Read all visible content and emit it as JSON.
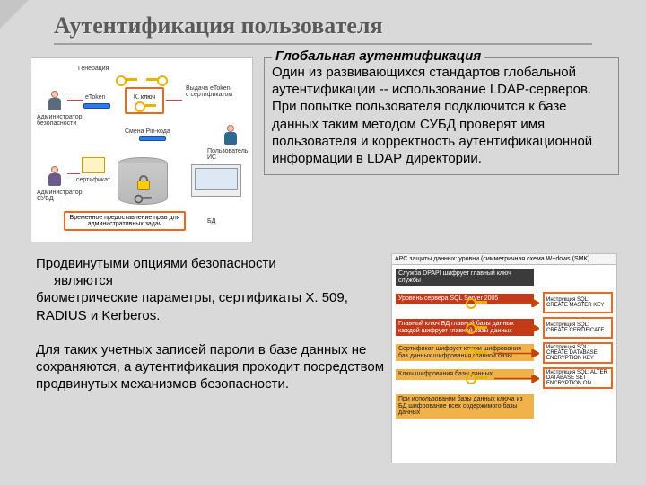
{
  "title": "Аутентификация пользователя",
  "right_panel": {
    "legend": "Глобальная аутентификация",
    "body": "Один из развивающихся стандартов глобальной аутентификации -- использование LDAP-серверов. При попытке пользователя подключится к базе данных таким методом СУБД проверят имя пользователя и корректность аутентификационной информации в LDAP директории."
  },
  "para2_line1": "Продвинутыми опциями безопасности",
  "para2_line2": "являются",
  "para2_rest": "биометрические параметры, сертификаты X. 509, RADIUS и Kerberos.",
  "para3": "Для таких учетных записей пароли в базе данных не сохраняются, а аутентификация проходит посредством продвинутых механизмов безопасности.",
  "diagram1": {
    "labels": {
      "admin_sec": "Администратор безопасности",
      "etoken": "eToken",
      "generation": "Генерация",
      "pin": "Смена Pin-кода",
      "keys": "К. ключ",
      "cert_issue": "Выдача eToken\nс сертификатом",
      "user": "Пользователь ИС",
      "admin": "Администратор СУБД",
      "cert": "сертификат",
      "db": "БД",
      "manage": "Временное предоставление прав для административных задач"
    },
    "colors": {
      "person1_body": "#5a6b7a",
      "person2_body": "#6a5b8a",
      "person3_body": "#2e6a8f",
      "key_yellow": "#e6b400",
      "orange": "#e96a1f"
    }
  },
  "diagram2": {
    "header": "АРС защиты данных: уровни (симметричная\nсхема W+dows (SMK)",
    "rows": [
      {
        "left_bg": "strip-dark",
        "left": "Служба DPAPI шифрует главный ключ службы",
        "right": ""
      },
      {
        "left_bg": "strip-red",
        "left": "Уровень сервера SQL Server 2005",
        "right": "Инструкция SQL:\nCREATE MASTER KEY"
      },
      {
        "left_bg": "strip-red",
        "left": "Главный ключ БД главной базы данных\nкаждой шифрует главной базы данных",
        "right": "Инструкция SQL:\nCREATE CERTIFICATE"
      },
      {
        "left_bg": "strip-orange",
        "left": "Сертификат шифрует ключи шифрования\nбаз данных шифрования главной базы",
        "right": "Инструкция SQL:\nCREATE DATABASE\nENCRYPTION KEY"
      },
      {
        "left_bg": "strip-orange",
        "left": "Ключ шифрования базы данных",
        "right": "Инструкция SQL:\nALTER DATABASE\nSET ENCRYPTION ON"
      },
      {
        "left_bg": "strip-orange",
        "left": "При использовании базы данных ключа из БД\nшифрование всех содержимого базы данных",
        "right": ""
      }
    ],
    "colors": {
      "orange": "#e96a1f",
      "key": "#e6b400",
      "arrow": "#c44400"
    }
  }
}
